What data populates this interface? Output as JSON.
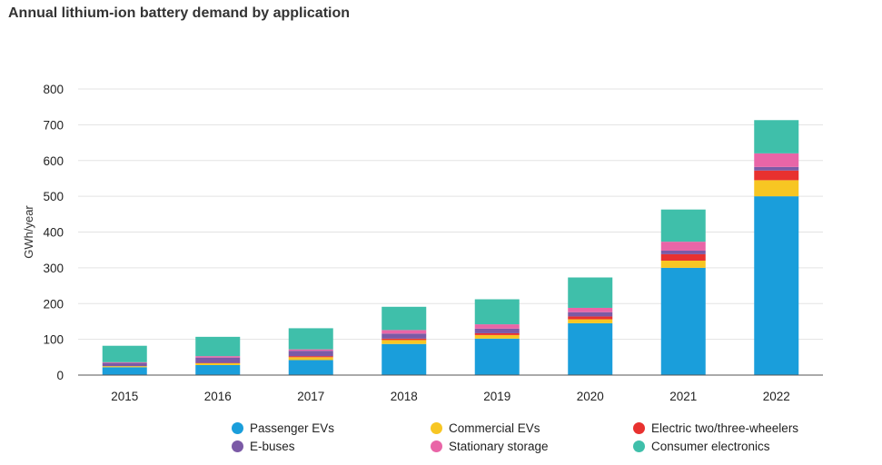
{
  "chart_data": {
    "type": "bar",
    "stacked": true,
    "title": "Annual lithium-ion battery demand by application",
    "ylabel": "GWh/year",
    "xlabel": "",
    "ylim": [
      0,
      800
    ],
    "yticks": [
      0,
      100,
      200,
      300,
      400,
      500,
      600,
      700,
      800
    ],
    "grid": true,
    "legend_position": "bottom",
    "categories": [
      "2015",
      "2016",
      "2017",
      "2018",
      "2019",
      "2020",
      "2021",
      "2022"
    ],
    "series": [
      {
        "name": "Passenger EVs",
        "color": "#1a9edb",
        "values": [
          22,
          28,
          42,
          87,
          102,
          145,
          300,
          500
        ]
      },
      {
        "name": "Commercial EVs",
        "color": "#f7c623",
        "values": [
          3,
          5,
          8,
          11,
          10,
          11,
          20,
          45
        ]
      },
      {
        "name": "Electric two/three-wheelers",
        "color": "#e8312f",
        "values": [
          0,
          1,
          3,
          4,
          5,
          8,
          18,
          27
        ]
      },
      {
        "name": "E-buses",
        "color": "#7b5aa6",
        "values": [
          9,
          15,
          15,
          14,
          13,
          12,
          10,
          10
        ]
      },
      {
        "name": "Stationary storage",
        "color": "#e965a7",
        "values": [
          2,
          4,
          4,
          10,
          12,
          12,
          25,
          38
        ]
      },
      {
        "name": "Consumer electronics",
        "color": "#3fbfaa",
        "values": [
          46,
          54,
          59,
          65,
          70,
          85,
          90,
          93
        ]
      }
    ]
  }
}
